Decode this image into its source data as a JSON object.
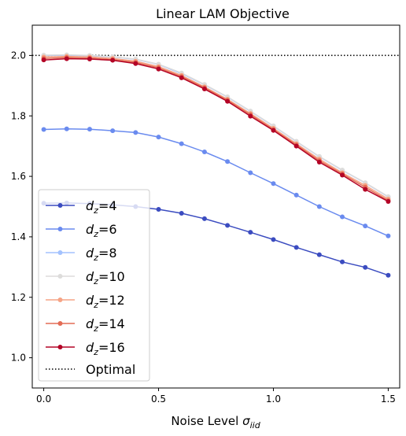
{
  "chart_data": {
    "type": "line",
    "title": "Linear LAM Objective",
    "xlabel": "Noise Level σ_iid",
    "xlabel_main": "Noise Level ",
    "xlabel_symbol": "σ",
    "xlabel_sub": "iid",
    "ylabel": "",
    "xlim": [
      -0.05,
      1.55
    ],
    "ylim": [
      0.9,
      2.1
    ],
    "xticks": [
      0.0,
      0.5,
      1.0,
      1.5
    ],
    "xtick_labels": [
      "0.0",
      "0.5",
      "1.0",
      "1.5"
    ],
    "yticks": [
      1.0,
      1.2,
      1.4,
      1.6,
      1.8,
      2.0
    ],
    "ytick_labels": [
      "1.0",
      "1.2",
      "1.4",
      "1.6",
      "1.8",
      "2.0"
    ],
    "grid": false,
    "legend_position": "lower-left",
    "x": [
      0.0,
      0.1,
      0.2,
      0.3,
      0.4,
      0.5,
      0.6,
      0.7,
      0.8,
      0.9,
      1.0,
      1.1,
      1.2,
      1.3,
      1.4,
      1.5
    ],
    "series": [
      {
        "name": "d_z=4",
        "label_var": "d",
        "label_sub": "z",
        "label_val": "=4",
        "color": "#3b4cc0",
        "values": [
          1.511,
          1.512,
          1.51,
          1.506,
          1.5,
          1.491,
          1.478,
          1.46,
          1.438,
          1.415,
          1.391,
          1.365,
          1.341,
          1.317,
          1.299,
          1.273
        ]
      },
      {
        "name": "d_z=6",
        "label_var": "d",
        "label_sub": "z",
        "label_val": "=6",
        "color": "#6a8bef",
        "values": [
          1.755,
          1.757,
          1.756,
          1.751,
          1.745,
          1.73,
          1.708,
          1.681,
          1.649,
          1.612,
          1.576,
          1.538,
          1.5,
          1.466,
          1.436,
          1.403
        ]
      },
      {
        "name": "d_z=8",
        "label_var": "d",
        "label_sub": "z",
        "label_val": "=8",
        "color": "#a3c2fe",
        "values": [
          2.0,
          2.0,
          1.999,
          1.995,
          1.987,
          1.97,
          1.94,
          1.903,
          1.862,
          1.815,
          1.766,
          1.715,
          1.665,
          1.62,
          1.578,
          1.532
        ]
      },
      {
        "name": "d_z=10",
        "label_var": "d",
        "label_sub": "z",
        "label_val": "=10",
        "color": "#dddcdb",
        "values": [
          2.001,
          2.002,
          2.0,
          1.996,
          1.988,
          1.971,
          1.942,
          1.904,
          1.863,
          1.816,
          1.767,
          1.716,
          1.666,
          1.621,
          1.579,
          1.533
        ]
      },
      {
        "name": "d_z=12",
        "label_var": "d",
        "label_sub": "z",
        "label_val": "=12",
        "color": "#f6a486",
        "values": [
          1.995,
          1.997,
          1.995,
          1.99,
          1.981,
          1.963,
          1.934,
          1.896,
          1.855,
          1.808,
          1.759,
          1.708,
          1.657,
          1.612,
          1.57,
          1.525
        ]
      },
      {
        "name": "d_z=14",
        "label_var": "d",
        "label_sub": "z",
        "label_val": "=14",
        "color": "#e36c55",
        "values": [
          1.99,
          1.993,
          1.991,
          1.986,
          1.977,
          1.959,
          1.93,
          1.893,
          1.852,
          1.804,
          1.755,
          1.704,
          1.652,
          1.608,
          1.564,
          1.52
        ]
      },
      {
        "name": "d_z=16",
        "label_var": "d",
        "label_sub": "z",
        "label_val": "=16",
        "color": "#b40426",
        "values": [
          1.985,
          1.989,
          1.988,
          1.984,
          1.973,
          1.955,
          1.926,
          1.889,
          1.848,
          1.799,
          1.752,
          1.7,
          1.647,
          1.604,
          1.557,
          1.517
        ]
      }
    ],
    "reference_line": {
      "name": "Optimal",
      "y": 2.0,
      "color": "#000000",
      "style": "dotted"
    }
  }
}
